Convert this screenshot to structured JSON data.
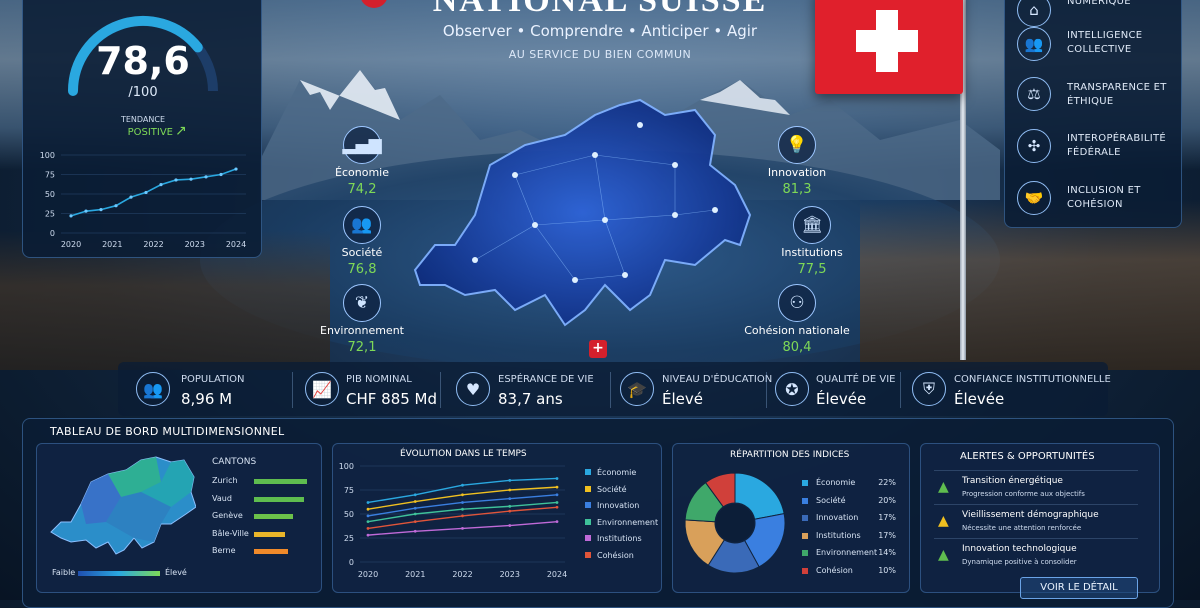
{
  "header": {
    "title": "NATIONAL SUISSE",
    "subtitle": "Observer • Comprendre • Anticiper • Agir",
    "tagline": "AU SERVICE DU BIEN COMMUN"
  },
  "score": {
    "value": "78,6",
    "max": "/100",
    "trend_label": "TENDANCE",
    "trend_value": "POSITIVE",
    "fraction": 0.786
  },
  "score_chart": {
    "y_ticks": [
      "100",
      "75",
      "50",
      "25",
      "0"
    ],
    "x_ticks": [
      "2020",
      "2021",
      "2022",
      "2023",
      "2024"
    ],
    "values": [
      22,
      28,
      30,
      35,
      46,
      52,
      62,
      68,
      69,
      72,
      75,
      82
    ]
  },
  "indicators_left": [
    {
      "label": "Économie",
      "value": "74,2",
      "icon": "chart-icon"
    },
    {
      "label": "Société",
      "value": "76,8",
      "icon": "people-icon"
    },
    {
      "label": "Environnement",
      "value": "72,1",
      "icon": "leaf-icon"
    }
  ],
  "indicators_right": [
    {
      "label": "Innovation",
      "value": "81,3",
      "icon": "lightbulb-icon"
    },
    {
      "label": "Institutions",
      "value": "77,5",
      "icon": "institution-icon"
    },
    {
      "label": "Cohésion nationale",
      "value": "80,4",
      "icon": "community-icon"
    }
  ],
  "values_panel": [
    {
      "label": "NUMÉRIQUE",
      "icon": "digital-icon"
    },
    {
      "label": "INTELLIGENCE COLLECTIVE",
      "icon": "team-icon"
    },
    {
      "label": "TRANSPARENCE ET ÉTHIQUE",
      "icon": "scales-icon"
    },
    {
      "label": "INTEROPÉRABILITÉ FÉDÉRALE",
      "icon": "network-icon"
    },
    {
      "label": "INCLUSION ET COHÉSION",
      "icon": "handshake-icon"
    }
  ],
  "kpis": [
    {
      "label": "POPULATION",
      "value": "8,96 M",
      "icon": "population-icon"
    },
    {
      "label": "PIB NOMINAL",
      "value": "CHF 885 Md",
      "icon": "gdp-icon"
    },
    {
      "label": "ESPÉRANCE DE VIE",
      "value": "83,7 ans",
      "icon": "heart-icon"
    },
    {
      "label": "NIVEAU D'ÉDUCATION",
      "value": "Élevé",
      "icon": "graduation-icon"
    },
    {
      "label": "QUALITÉ DE VIE",
      "value": "Élevée",
      "icon": "award-icon"
    },
    {
      "label": "CONFIANCE INSTITUTIONNELLE",
      "value": "Élevée",
      "icon": "shield-icon"
    }
  ],
  "dashboard": {
    "title": "TABLEAU DE BORD MULTIDIMENSIONNEL",
    "cantons": {
      "title": "CANTONS",
      "items": [
        {
          "name": "Zurich",
          "fraction": 0.95,
          "color": "#5fbd4f"
        },
        {
          "name": "Vaud",
          "fraction": 0.9,
          "color": "#5fbd4f"
        },
        {
          "name": "Genève",
          "fraction": 0.7,
          "color": "#6cc14a"
        },
        {
          "name": "Bâle-Ville",
          "fraction": 0.55,
          "color": "#e9b52a"
        },
        {
          "name": "Berne",
          "fraction": 0.6,
          "color": "#f08a2a"
        }
      ],
      "legend_low": "Faible",
      "legend_high": "Élevé"
    },
    "evolution": {
      "title": "ÉVOLUTION DANS LE TEMPS",
      "y_ticks": [
        "100",
        "75",
        "50",
        "25",
        "0"
      ],
      "x_ticks": [
        "2020",
        "2021",
        "2022",
        "2023",
        "2024"
      ]
    },
    "repartition": {
      "title": "RÉPARTITION DES INDICES"
    },
    "alerts": {
      "title": "ALERTES & OPPORTUNITÉS",
      "items": [
        {
          "title": "Transition énergétique",
          "desc": "Progression conforme aux objectifs",
          "level": "ok",
          "color": "#5fbd4f"
        },
        {
          "title": "Vieillissement démographique",
          "desc": "Nécessite une attention renforcée",
          "level": "warning",
          "color": "#f0c020"
        },
        {
          "title": "Innovation technologique",
          "desc": "Dynamique positive à consolider",
          "level": "ok",
          "color": "#5fbd4f"
        }
      ],
      "button": "VOIR LE DÉTAIL"
    }
  },
  "chart_data": [
    {
      "type": "line",
      "title": "ÉVOLUTION DANS LE TEMPS",
      "x": [
        "2020",
        "2021",
        "2022",
        "2023",
        "2024"
      ],
      "ylim": [
        0,
        100
      ],
      "series": [
        {
          "name": "Économie",
          "color": "#2aa8e0",
          "values": [
            62,
            70,
            80,
            85,
            87
          ]
        },
        {
          "name": "Société",
          "color": "#f0c020",
          "values": [
            55,
            63,
            70,
            75,
            78
          ]
        },
        {
          "name": "Innovation",
          "color": "#3a7fe0",
          "values": [
            48,
            56,
            62,
            66,
            70
          ]
        },
        {
          "name": "Environnement",
          "color": "#3fc29a",
          "values": [
            42,
            50,
            55,
            58,
            62
          ]
        },
        {
          "name": "Institutions",
          "color": "#c06ad8",
          "values": [
            28,
            32,
            35,
            38,
            42
          ]
        },
        {
          "name": "Cohésion",
          "color": "#e0553a",
          "values": [
            35,
            42,
            48,
            53,
            57
          ]
        }
      ]
    },
    {
      "type": "pie",
      "title": "RÉPARTITION DES INDICES",
      "categories": [
        "Économie",
        "Société",
        "Innovation",
        "Institutions",
        "Environnement",
        "Cohésion"
      ],
      "values": [
        22,
        20,
        17,
        17,
        14,
        10
      ],
      "labels": [
        "22%",
        "20%",
        "17%",
        "17%",
        "14%",
        "10%"
      ],
      "colors": [
        "#2aa8e0",
        "#3a7fe0",
        "#3a6ab8",
        "#d9a05a",
        "#3fa86a",
        "#d0403a"
      ]
    }
  ]
}
